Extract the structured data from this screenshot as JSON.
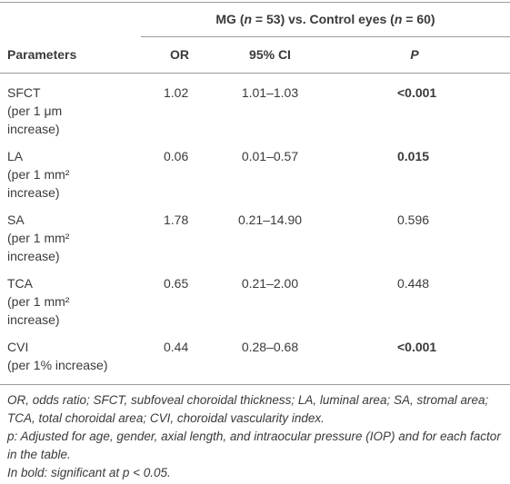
{
  "table": {
    "group_header": [
      "MG (",
      "n",
      " = 53) vs. Control eyes (",
      "n",
      " = 60)"
    ],
    "columns": [
      "Parameters",
      "OR",
      "95% CI",
      "P"
    ],
    "rows": [
      {
        "parameter": "SFCT",
        "detail": [
          "(per 1 μm",
          "increase)"
        ],
        "or": "1.02",
        "ci": "1.01–1.03",
        "p": "<0.001",
        "bold": true
      },
      {
        "parameter": "LA",
        "detail": [
          "(per 1 mm²",
          "increase)"
        ],
        "or": "0.06",
        "ci": "0.01–0.57",
        "p": "0.015",
        "bold": true
      },
      {
        "parameter": "SA",
        "detail": [
          "(per 1 mm²",
          "increase)"
        ],
        "or": "1.78",
        "ci": "0.21–14.90",
        "p": "0.596",
        "bold": false
      },
      {
        "parameter": "TCA",
        "detail": [
          "(per 1 mm²",
          "increase)"
        ],
        "or": "0.65",
        "ci": "0.21–2.00",
        "p": "0.448",
        "bold": false
      },
      {
        "parameter": "CVI",
        "detail": [
          "(per 1% increase)"
        ],
        "or": "0.44",
        "ci": "0.28–0.68",
        "p": "<0.001",
        "bold": true
      }
    ]
  },
  "footnotes": [
    "OR, odds ratio; SFCT, subfoveal choroidal thickness; LA, luminal area; SA, stromal area; TCA, total choroidal area; CVI, choroidal vascularity index.",
    "p: Adjusted for age, gender, axial length, and intraocular pressure (IOP) and for each factor in the table.",
    "In bold: significant at p < 0.05."
  ]
}
